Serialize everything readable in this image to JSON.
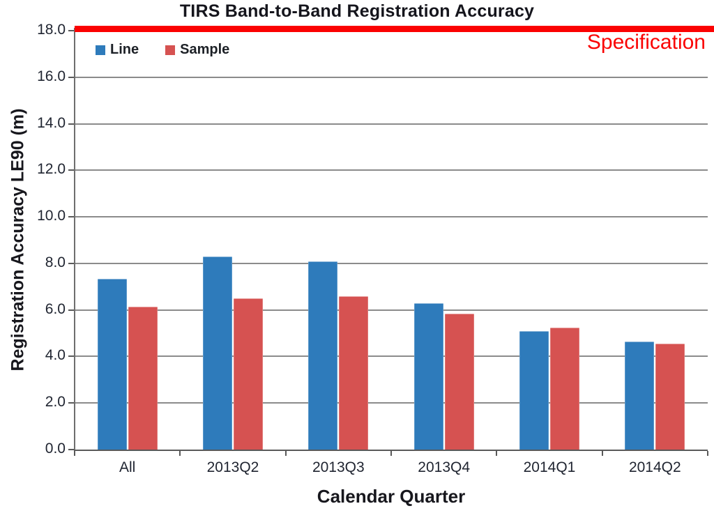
{
  "title": "TIRS Band-to-Band Registration Accuracy",
  "chart_data": {
    "type": "bar",
    "title": "TIRS Band-to-Band Registration Accuracy",
    "categories": [
      "All",
      "2013Q2",
      "2013Q3",
      "2013Q4",
      "2014Q1",
      "2014Q2"
    ],
    "series": [
      {
        "name": "Line",
        "color": "#2e7bbb",
        "values": [
          7.35,
          8.3,
          8.1,
          6.3,
          5.1,
          4.65
        ]
      },
      {
        "name": "Sample",
        "color": "#d65251",
        "values": [
          6.15,
          6.5,
          6.6,
          5.85,
          5.25,
          4.55
        ]
      }
    ],
    "xlabel": "Calendar Quarter",
    "ylabel": "Registration Accuracy LE90 (m)",
    "ylim": [
      0,
      18
    ],
    "ytick_step": 2,
    "ytick_labels": [
      "0.0",
      "2.0",
      "4.0",
      "6.0",
      "8.0",
      "10.0",
      "12.0",
      "14.0",
      "16.0",
      "18.0"
    ],
    "grid": true,
    "legend_position": "top-left-inside",
    "spec_line": {
      "label": "Specification",
      "value": 18,
      "color": "#fb0202"
    }
  },
  "colors": {
    "bar_line": "#2e7bbb",
    "bar_sample": "#d65251",
    "spec_red": "#fb0202",
    "gridline": "#8b8b8b",
    "axis": "#595959",
    "text": "#1f2430"
  }
}
